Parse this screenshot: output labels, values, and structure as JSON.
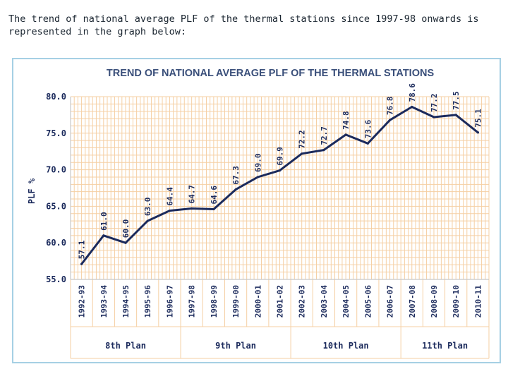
{
  "intro": {
    "line1": "The trend of national average PLF of the thermal stations since 1997-98 onwards is",
    "line2": "represented in the graph below:"
  },
  "colors": {
    "line": "#1b2a5c",
    "grid": "#f5cfa3",
    "frame": "#a6d0e4",
    "title": "#3a4f7a",
    "text": "#1b2a5c"
  },
  "chart_data": {
    "type": "line",
    "title": "TREND OF NATIONAL AVERAGE PLF OF THE THERMAL STATIONS",
    "ylabel": "PLF %",
    "xlabel": "",
    "ylim": [
      55.0,
      80.0
    ],
    "yticks": [
      "55.0",
      "60.0",
      "65.0",
      "70.0",
      "75.0",
      "80.0"
    ],
    "categories": [
      "1992-93",
      "1993-94",
      "1994-95",
      "1995-96",
      "1996-97",
      "1997-98",
      "1998-99",
      "1999-00",
      "2000-01",
      "2001-02",
      "2002-03",
      "2003-04",
      "2004-05",
      "2005-06",
      "2006-07",
      "2007-08",
      "2008-09",
      "2009-10",
      "2010-11"
    ],
    "values": [
      57.1,
      61.0,
      60.0,
      63.0,
      64.4,
      64.7,
      64.6,
      67.3,
      69.0,
      69.9,
      72.2,
      72.7,
      74.8,
      73.6,
      76.8,
      78.6,
      77.2,
      77.5,
      75.1
    ],
    "value_labels": [
      "57.1",
      "61.0",
      "60.0",
      "63.0",
      "64.4",
      "64.7",
      "64.6",
      "67.3",
      "69.0",
      "69.9",
      "72.2",
      "72.7",
      "74.8",
      "73.6",
      "76.8",
      "78.6",
      "77.2",
      "77.5",
      "75.1"
    ],
    "plans": [
      {
        "name": "8th Plan",
        "start": 0,
        "end": 4
      },
      {
        "name": "9th Plan",
        "start": 5,
        "end": 9
      },
      {
        "name": "10th Plan",
        "start": 10,
        "end": 14
      },
      {
        "name": "11th Plan",
        "start": 15,
        "end": 18
      }
    ]
  }
}
